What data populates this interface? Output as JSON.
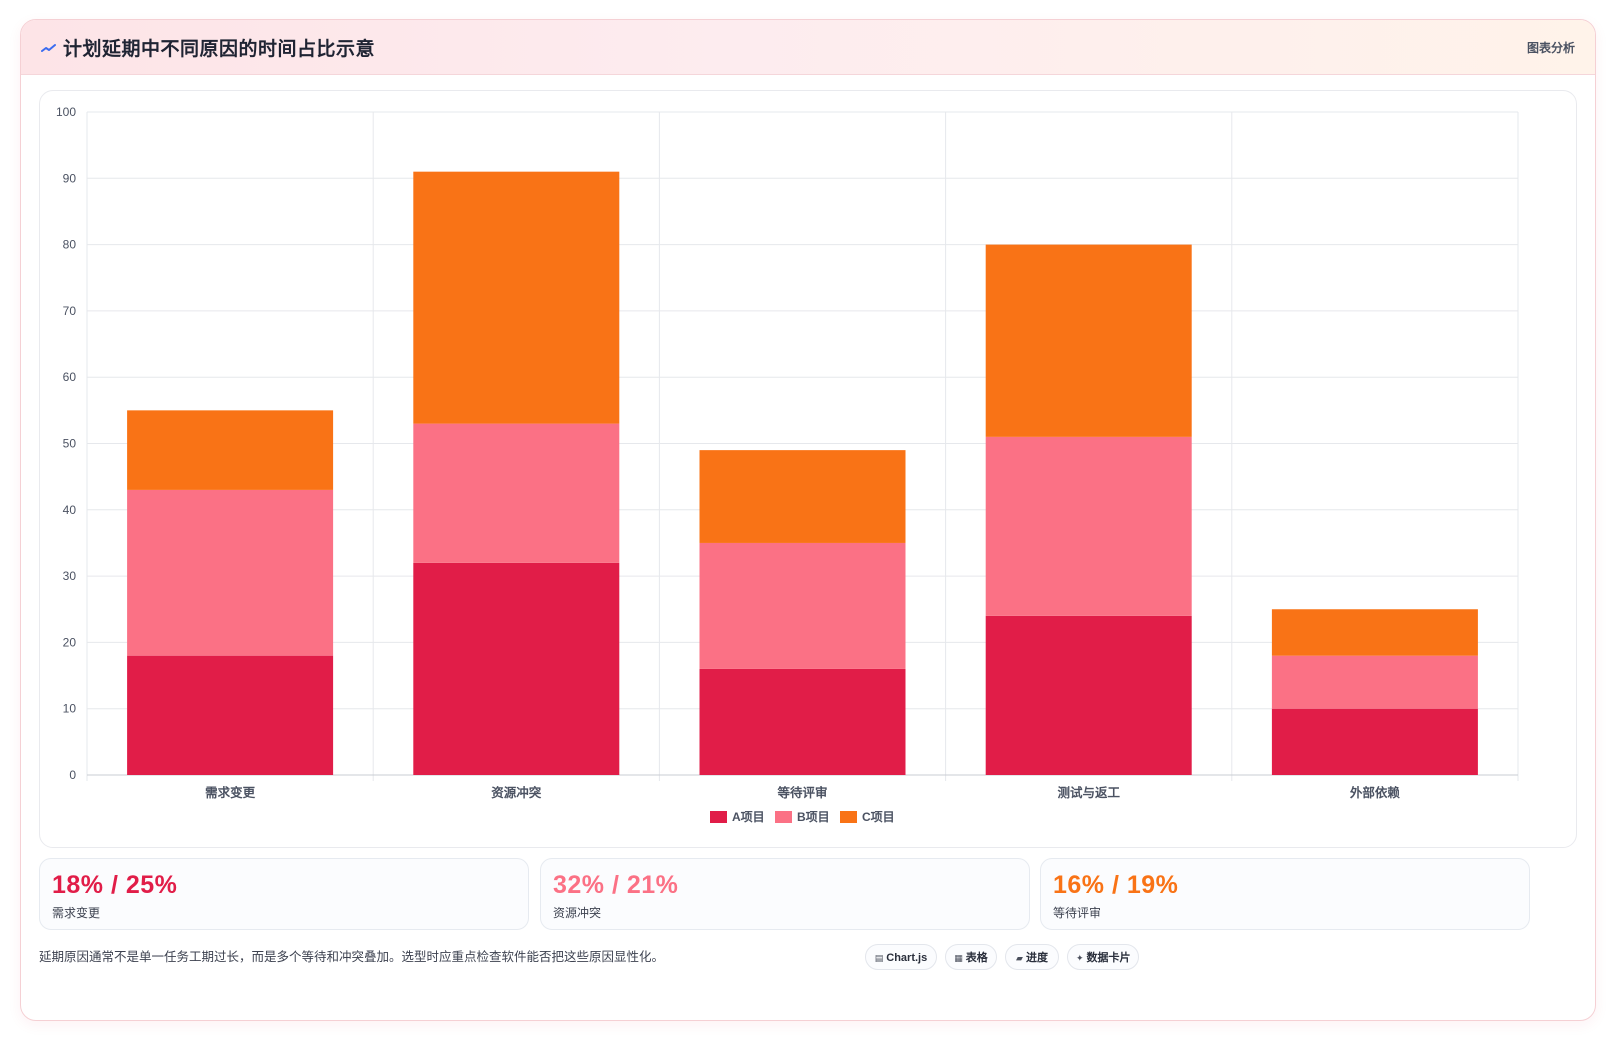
{
  "header": {
    "title": "计划延期中不同原因的时间占比示意",
    "tag": "图表分析",
    "icon": "trend-line-icon"
  },
  "colors": {
    "a": "#e11d48",
    "b": "#fb7185",
    "c": "#f97316",
    "grid": "#e6e8ec",
    "axis_text": "#4b5262"
  },
  "chart_data": {
    "type": "bar",
    "stacked": true,
    "categories": [
      "需求变更",
      "资源冲突",
      "等待评审",
      "测试与返工",
      "外部依赖"
    ],
    "series": [
      {
        "name": "A项目",
        "color": "#e11d48",
        "values": [
          18,
          32,
          16,
          24,
          10
        ]
      },
      {
        "name": "B项目",
        "color": "#fb7185",
        "values": [
          25,
          21,
          19,
          27,
          8
        ]
      },
      {
        "name": "C项目",
        "color": "#f97316",
        "values": [
          12,
          38,
          14,
          29,
          7
        ]
      }
    ],
    "ylim": [
      0,
      100
    ],
    "yticks": [
      0,
      10,
      20,
      30,
      40,
      50,
      60,
      70,
      80,
      90,
      100
    ],
    "grid": true,
    "legend": "bottom"
  },
  "stats": [
    {
      "value": "18% / 25%",
      "label": "需求变更",
      "color": "#e11d48"
    },
    {
      "value": "32% / 21%",
      "label": "资源冲突",
      "color": "#fb7185"
    },
    {
      "value": "16% / 19%",
      "label": "等待评审",
      "color": "#f97316"
    }
  ],
  "footer": {
    "note": "延期原因通常不是单一任务工期过长，而是多个等待和冲突叠加。选型时应重点检查软件能否把这些原因显性化。",
    "chips": [
      {
        "icon": "▤",
        "icon_name": "chart-icon",
        "label": "Chart.js"
      },
      {
        "icon": "▦",
        "icon_name": "table-icon",
        "label": "表格"
      },
      {
        "icon": "▰",
        "icon_name": "progress-icon",
        "label": "进度"
      },
      {
        "icon": "✦",
        "icon_name": "sparkle-icon",
        "label": "数据卡片"
      }
    ]
  }
}
